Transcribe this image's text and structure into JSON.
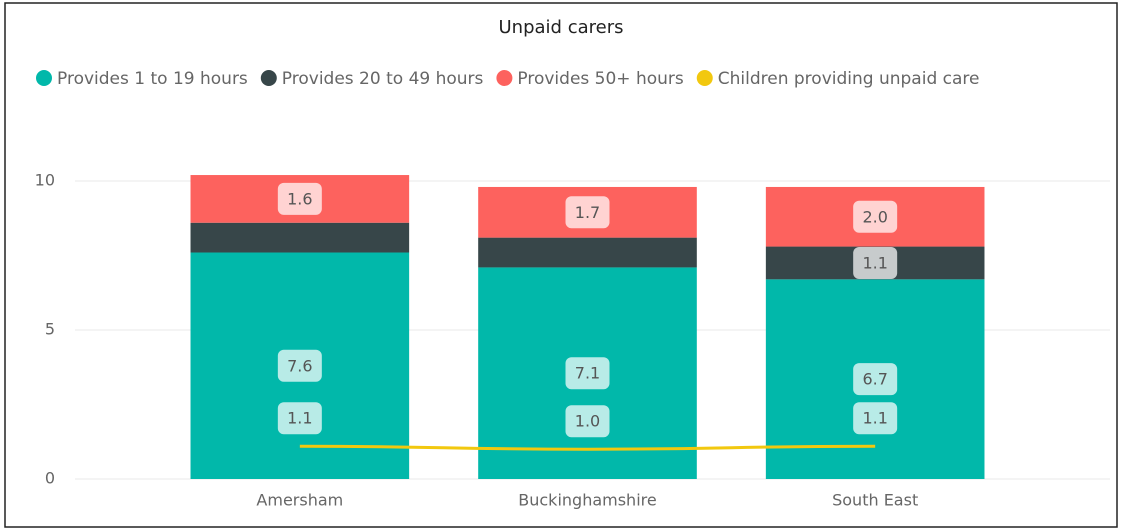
{
  "chart_data": {
    "type": "bar",
    "title": "Unpaid carers",
    "categories": [
      "Amersham",
      "Buckinghamshire",
      "South East"
    ],
    "series": [
      {
        "name": "Provides 1 to 19 hours",
        "color": "#01B8AA",
        "values": [
          7.6,
          7.1,
          6.7
        ],
        "value_labels": [
          "7.6",
          "7.1",
          "6.7"
        ]
      },
      {
        "name": "Provides 20 to 49 hours",
        "color": "#374649",
        "values": [
          1.0,
          1.0,
          1.1
        ],
        "value_labels": [
          null,
          null,
          "1.1"
        ]
      },
      {
        "name": "Provides 50+ hours",
        "color": "#FD625E",
        "values": [
          1.6,
          1.7,
          2.0
        ],
        "value_labels": [
          "1.6",
          "1.7",
          "2.0"
        ]
      },
      {
        "name": "Children providing unpaid care",
        "color": "#F2C80F",
        "type": "line",
        "values": [
          1.1,
          1.0,
          1.1
        ],
        "value_labels": [
          "1.1",
          "1.0",
          "1.1"
        ]
      }
    ],
    "ylim": [
      0,
      10.4
    ],
    "yticks": [
      0,
      5,
      10
    ],
    "grid": true
  }
}
